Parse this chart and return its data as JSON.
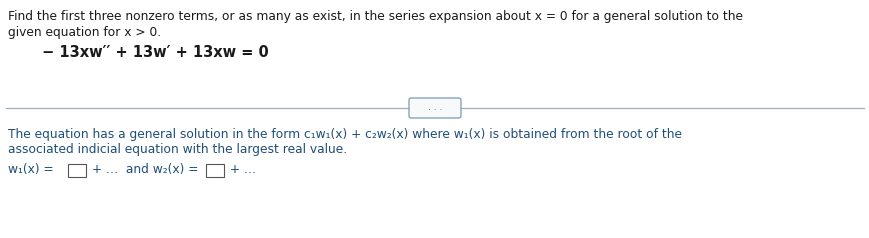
{
  "bg_color": "#ffffff",
  "text_color_black": "#1a1a1a",
  "text_color_blue": "#1F4E79",
  "line1": "Find the first three nonzero terms, or as many as exist, in the series expansion about x = 0 for a general solution to the",
  "line2": "given equation for x > 0.",
  "equation": "− 13xw′′ + 13w′ + 13xw = 0",
  "blue_line1": "The equation has a general solution in the form c₁w₁(x) + c₂w₂(x) where w₁(x) is obtained from the root of the",
  "blue_line2": "associated indicial equation with the largest real value.",
  "divider_color": "#9aafbf",
  "btn_edge_color": "#7a9ab0",
  "btn_face_color": "#f8f9fa",
  "btn_text_color": "#555555",
  "box_edge_color": "#555555",
  "bottom_pre1": "w₁(x) = ",
  "bottom_mid": " + …  and w₂(x) = ",
  "bottom_post": " + …"
}
